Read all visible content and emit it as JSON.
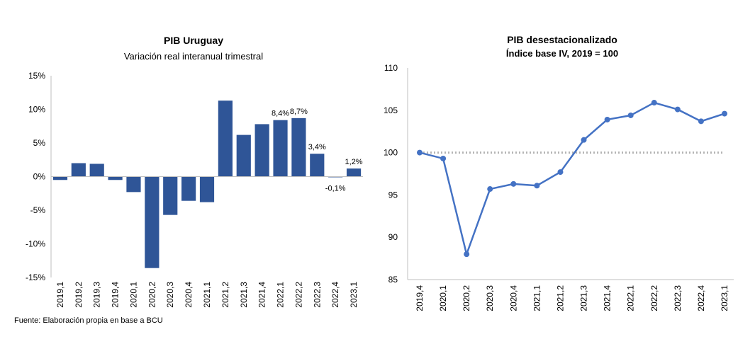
{
  "chart_data": [
    {
      "type": "bar",
      "title": "PIB Uruguay",
      "subtitle": "Variación real interanual trimestral",
      "categories": [
        "2019,1",
        "2019,2",
        "2019,3",
        "2019,4",
        "2020,1",
        "2020,2",
        "2020,3",
        "2020,4",
        "2021,1",
        "2021,2",
        "2021,3",
        "2021,4",
        "2022,1",
        "2022,2",
        "2022,3",
        "2022,4",
        "2023,1"
      ],
      "values": [
        -0.5,
        2.0,
        1.9,
        -0.5,
        -2.3,
        -13.6,
        -5.7,
        -3.6,
        -3.8,
        11.3,
        6.2,
        7.8,
        8.4,
        8.7,
        3.4,
        -0.1,
        1.2
      ],
      "data_labels": [
        "",
        "",
        "",
        "",
        "",
        "",
        "",
        "",
        "",
        "",
        "",
        "",
        "8,4%",
        "8,7%",
        "3,4%",
        "-0,1%",
        "1,2%"
      ],
      "yticks": [
        15,
        10,
        5,
        0,
        -5,
        -10,
        -15
      ],
      "ytick_labels": [
        "15%",
        "10%",
        "5%",
        "0%",
        "-5%",
        "-10%",
        "-15%"
      ],
      "ylim": [
        -15,
        15
      ],
      "color": "#2f5597",
      "xlabel": "",
      "ylabel": ""
    },
    {
      "type": "line",
      "title": "PIB desestacionalizado",
      "subtitle": "Índice base IV, 2019 = 100",
      "categories": [
        "2019,4",
        "2020,1",
        "2020,2",
        "2020,3",
        "2020,4",
        "2021,1",
        "2021,2",
        "2021,3",
        "2021,4",
        "2022,1",
        "2022,2",
        "2022,3",
        "2022,4",
        "2023,1"
      ],
      "values": [
        100.0,
        99.3,
        88.0,
        95.7,
        96.3,
        96.1,
        97.7,
        101.5,
        103.9,
        104.4,
        105.9,
        105.1,
        103.7,
        104.6
      ],
      "reference_line": 100,
      "yticks": [
        110,
        105,
        100,
        95,
        90,
        85
      ],
      "ytick_labels": [
        "110",
        "105",
        "100",
        "95",
        "90",
        "85"
      ],
      "ylim": [
        85,
        110
      ],
      "color": "#4472c4",
      "xlabel": "",
      "ylabel": ""
    }
  ],
  "source_note": "Fuente: Elaboración propia en base a BCU"
}
